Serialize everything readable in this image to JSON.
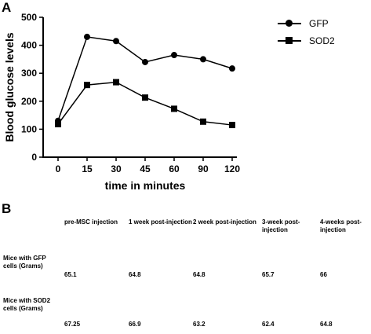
{
  "panels": {
    "a": "A",
    "b": "B"
  },
  "chart_data": {
    "type": "line",
    "x": [
      0,
      15,
      30,
      45,
      60,
      90,
      120
    ],
    "categories": [
      "0",
      "15",
      "30",
      "45",
      "60",
      "90",
      "120"
    ],
    "xlabel": "time in minutes",
    "ylabel": "Blood glucose levels",
    "ylim": [
      0,
      500
    ],
    "yticks": [
      0,
      100,
      200,
      300,
      400,
      500
    ],
    "grid": false,
    "legend_position": "top-right",
    "series": [
      {
        "name": "GFP",
        "marker": "circle",
        "values": [
          130,
          430,
          415,
          340,
          365,
          350,
          317
        ]
      },
      {
        "name": "SOD2",
        "marker": "square",
        "values": [
          118,
          258,
          268,
          213,
          173,
          127,
          115
        ]
      }
    ]
  },
  "table": {
    "headers": [
      "",
      "pre-MSC injection",
      "1 week post-injection",
      "2 week post-injection",
      "3-week post-injection",
      "4-weeks post-injection"
    ],
    "rows": [
      {
        "label": "Mice with GFP cells (Grams)",
        "values": [
          "65.1",
          "64.8",
          "64.8",
          "65.7",
          "66"
        ]
      },
      {
        "label": "Mice with SOD2 cells (Grams)",
        "values": [
          "67.25",
          "66.9",
          "63.2",
          "62.4",
          "64.8"
        ]
      }
    ]
  }
}
